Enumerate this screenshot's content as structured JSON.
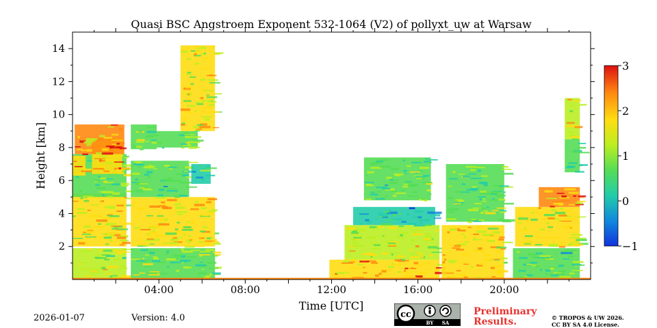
{
  "chart_data": {
    "type": "heatmap",
    "title": "Quasi BSC Angstroem Exponent 532-1064 (V2) of pollyxt_uw at Warsaw",
    "xlabel": "Time [UTC]",
    "ylabel": "Height [km]",
    "xlim_hours": [
      0,
      24
    ],
    "ylim_km": [
      0,
      15
    ],
    "x_ticks": [
      {
        "value": 4,
        "label": "04:00"
      },
      {
        "value": 8,
        "label": "08:00"
      },
      {
        "value": 12,
        "label": "12:00"
      },
      {
        "value": 16,
        "label": "16:00"
      },
      {
        "value": 20,
        "label": "20:00"
      }
    ],
    "y_ticks": [
      {
        "value": 2,
        "label": "2"
      },
      {
        "value": 4,
        "label": "4"
      },
      {
        "value": 6,
        "label": "6"
      },
      {
        "value": 8,
        "label": "8"
      },
      {
        "value": 10,
        "label": "10"
      },
      {
        "value": 12,
        "label": "12"
      },
      {
        "value": 14,
        "label": "14"
      }
    ],
    "colorbar": {
      "min": -1,
      "max": 3,
      "ticks": [
        {
          "value": 3,
          "label": "3"
        },
        {
          "value": 2,
          "label": "2"
        },
        {
          "value": 1,
          "label": "1"
        },
        {
          "value": 0,
          "label": "0"
        },
        {
          "value": -1,
          "label": "−1"
        }
      ],
      "colors": [
        "#1133dd",
        "#1188dd",
        "#22ccaa",
        "#55dd55",
        "#bbee22",
        "#ffdd11",
        "#ff8811",
        "#dd1111"
      ]
    },
    "regions": [
      {
        "t0": 0.0,
        "t1": 2.5,
        "h0": 0.05,
        "h1": 1.9,
        "value": 1.3
      },
      {
        "t0": 0.0,
        "t1": 2.5,
        "h0": 2.0,
        "h1": 5.2,
        "value": 1.6
      },
      {
        "t0": 0.0,
        "t1": 2.5,
        "h0": 5.0,
        "h1": 7.6,
        "value": 0.9
      },
      {
        "t0": 0.0,
        "t1": 0.6,
        "h0": 6.3,
        "h1": 7.5,
        "value": 1.9
      },
      {
        "t0": 0.9,
        "t1": 2.3,
        "h0": 6.4,
        "h1": 8.6,
        "value": 2.0
      },
      {
        "t0": 0.1,
        "t1": 2.4,
        "h0": 7.6,
        "h1": 9.4,
        "value": 2.2
      },
      {
        "t0": 2.7,
        "t1": 6.6,
        "h0": 0.05,
        "h1": 1.9,
        "value": 0.9
      },
      {
        "t0": 2.7,
        "t1": 6.6,
        "h0": 2.0,
        "h1": 5.0,
        "value": 1.6
      },
      {
        "t0": 2.7,
        "t1": 5.4,
        "h0": 5.0,
        "h1": 7.2,
        "value": 0.7
      },
      {
        "t0": 5.5,
        "t1": 6.4,
        "h0": 5.8,
        "h1": 7.0,
        "value": 0.3
      },
      {
        "t0": 2.7,
        "t1": 3.9,
        "h0": 7.9,
        "h1": 9.4,
        "value": 0.9
      },
      {
        "t0": 3.9,
        "t1": 5.8,
        "h0": 8.0,
        "h1": 9.0,
        "value": 0.8
      },
      {
        "t0": 5.0,
        "t1": 6.6,
        "h0": 9.0,
        "h1": 14.2,
        "value": 1.6
      },
      {
        "t0": 11.9,
        "t1": 17.0,
        "h0": 0.05,
        "h1": 1.2,
        "value": 2.1
      },
      {
        "t0": 12.6,
        "t1": 17.0,
        "h0": 1.2,
        "h1": 3.3,
        "value": 1.4
      },
      {
        "t0": 13.0,
        "t1": 16.8,
        "h0": 3.3,
        "h1": 4.4,
        "value": 0.1
      },
      {
        "t0": 13.5,
        "t1": 16.6,
        "h0": 4.8,
        "h1": 7.4,
        "value": 0.7
      },
      {
        "t0": 17.1,
        "t1": 20.0,
        "h0": 0.05,
        "h1": 3.3,
        "value": 1.8
      },
      {
        "t0": 17.3,
        "t1": 20.0,
        "h0": 3.5,
        "h1": 7.0,
        "value": 0.9
      },
      {
        "t0": 20.4,
        "t1": 23.5,
        "h0": 0.05,
        "h1": 1.9,
        "value": 0.6
      },
      {
        "t0": 20.5,
        "t1": 23.5,
        "h0": 2.0,
        "h1": 4.4,
        "value": 1.6
      },
      {
        "t0": 21.6,
        "t1": 23.5,
        "h0": 4.4,
        "h1": 5.6,
        "value": 2.3
      },
      {
        "t0": 22.8,
        "t1": 23.5,
        "h0": 6.5,
        "h1": 8.5,
        "value": 0.6
      },
      {
        "t0": 22.8,
        "t1": 23.5,
        "h0": 8.5,
        "h1": 11.0,
        "value": 1.5
      }
    ],
    "ground_layer": {
      "h0": 0.0,
      "h1": 0.1,
      "value": 2.3
    }
  },
  "footer": {
    "date": "2026-01-07",
    "version": "Version: 4.0",
    "preliminary_line1": "Preliminary",
    "preliminary_line2": "Results.",
    "license_line1": "© TROPOS & UW 2026.",
    "license_line2": "CC BY SA 4.0 License.",
    "cc_badge_text": [
      "cc",
      "BY",
      "SA"
    ]
  }
}
